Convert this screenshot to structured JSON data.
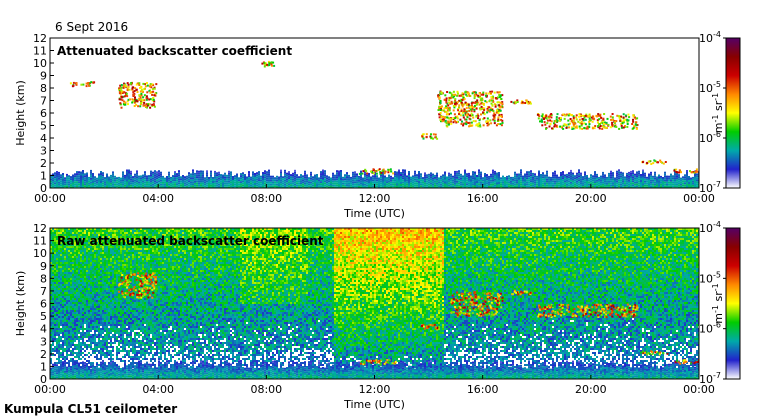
{
  "date": "6 Sept 2016",
  "instrument": "Kumpula CL51 ceilometer",
  "colorbar": {
    "unit_main": "m",
    "unit_main_exp": "-1",
    "unit_sr": " sr",
    "unit_sr_exp": "-1",
    "ticks": [
      {
        "base": "10",
        "exp": "-4",
        "value": 0.0001
      },
      {
        "base": "10",
        "exp": "-5",
        "value": 1e-05
      },
      {
        "base": "10",
        "exp": "-6",
        "value": 1e-06
      },
      {
        "base": "10",
        "exp": "-7",
        "value": 1e-07
      }
    ],
    "colors": [
      "#ffffff",
      "#2222cc",
      "#00aaaa",
      "#00cc00",
      "#ffff00",
      "#ff8800",
      "#cc0000",
      "#880000",
      "#550066"
    ]
  },
  "chart_data": [
    {
      "type": "heatmap",
      "title": "Attenuated backscatter coefficient",
      "xlabel": "Time (UTC)",
      "ylabel": "Height (km)",
      "x_ticks": [
        "00:00",
        "04:00",
        "08:00",
        "12:00",
        "16:00",
        "20:00",
        "00:00"
      ],
      "xlim": [
        0,
        24
      ],
      "ylim": [
        0,
        12
      ],
      "y_ticks": [
        "0",
        "1",
        "2",
        "3",
        "4",
        "5",
        "6",
        "7",
        "8",
        "9",
        "10",
        "11",
        "12"
      ],
      "color_scale": "log",
      "color_range": [
        1e-07,
        0.0001
      ],
      "features": [
        {
          "kind": "boundary_layer",
          "t_start": 0,
          "t_end": 24,
          "h_low": 0,
          "h_high": 1.5
        },
        {
          "kind": "cloud",
          "t_start": 0.7,
          "t_end": 1.6,
          "h_low": 8.2,
          "h_high": 8.6
        },
        {
          "kind": "cloud",
          "t_start": 2.5,
          "t_end": 3.9,
          "h_low": 6.5,
          "h_high": 8.5
        },
        {
          "kind": "cloud",
          "t_start": 7.8,
          "t_end": 8.3,
          "h_low": 9.8,
          "h_high": 10.2
        },
        {
          "kind": "cloud",
          "t_start": 11.4,
          "t_end": 12.8,
          "h_low": 1.2,
          "h_high": 1.6
        },
        {
          "kind": "cloud",
          "t_start": 13.7,
          "t_end": 14.3,
          "h_low": 4.0,
          "h_high": 4.4
        },
        {
          "kind": "cloud",
          "t_start": 14.3,
          "t_end": 16.7,
          "h_low": 5.0,
          "h_high": 7.8
        },
        {
          "kind": "cloud",
          "t_start": 17.0,
          "t_end": 17.8,
          "h_low": 6.8,
          "h_high": 7.1
        },
        {
          "kind": "cloud",
          "t_start": 18.0,
          "t_end": 21.7,
          "h_low": 4.8,
          "h_high": 6.0
        },
        {
          "kind": "cloud",
          "t_start": 21.8,
          "t_end": 22.8,
          "h_low": 2.0,
          "h_high": 2.3
        },
        {
          "kind": "cloud",
          "t_start": 23.0,
          "t_end": 24.0,
          "h_low": 1.3,
          "h_high": 1.6
        }
      ]
    },
    {
      "type": "heatmap",
      "title": "Raw attenuated backscatter coefficient",
      "xlabel": "Time (UTC)",
      "ylabel": "Height (km)",
      "x_ticks": [
        "00:00",
        "04:00",
        "08:00",
        "12:00",
        "16:00",
        "20:00",
        "00:00"
      ],
      "xlim": [
        0,
        24
      ],
      "ylim": [
        0,
        12
      ],
      "y_ticks": [
        "0",
        "1",
        "2",
        "3",
        "4",
        "5",
        "6",
        "7",
        "8",
        "9",
        "10",
        "11",
        "12"
      ],
      "color_scale": "log",
      "color_range": [
        1e-07,
        0.0001
      ],
      "features": [
        {
          "kind": "noise_background",
          "t_start": 0,
          "t_end": 24,
          "h_low": 0,
          "h_high": 12
        },
        {
          "kind": "boundary_layer",
          "t_start": 0,
          "t_end": 24,
          "h_low": 0,
          "h_high": 1.5
        },
        {
          "kind": "cloud",
          "t_start": 2.5,
          "t_end": 3.9,
          "h_low": 6.5,
          "h_high": 8.5
        },
        {
          "kind": "cloud",
          "t_start": 11.4,
          "t_end": 12.8,
          "h_low": 1.2,
          "h_high": 1.6
        },
        {
          "kind": "cloud",
          "t_start": 13.7,
          "t_end": 14.3,
          "h_low": 4.0,
          "h_high": 4.4
        },
        {
          "kind": "cloud",
          "t_start": 14.8,
          "t_end": 16.7,
          "h_low": 5.0,
          "h_high": 7.0
        },
        {
          "kind": "cloud",
          "t_start": 17.0,
          "t_end": 17.8,
          "h_low": 6.8,
          "h_high": 7.1
        },
        {
          "kind": "cloud",
          "t_start": 18.0,
          "t_end": 21.7,
          "h_low": 5.0,
          "h_high": 6.0
        },
        {
          "kind": "cloud",
          "t_start": 21.8,
          "t_end": 22.8,
          "h_low": 2.0,
          "h_high": 2.3
        },
        {
          "kind": "cloud",
          "t_start": 23.0,
          "t_end": 24.0,
          "h_low": 1.3,
          "h_high": 1.6
        }
      ]
    }
  ]
}
